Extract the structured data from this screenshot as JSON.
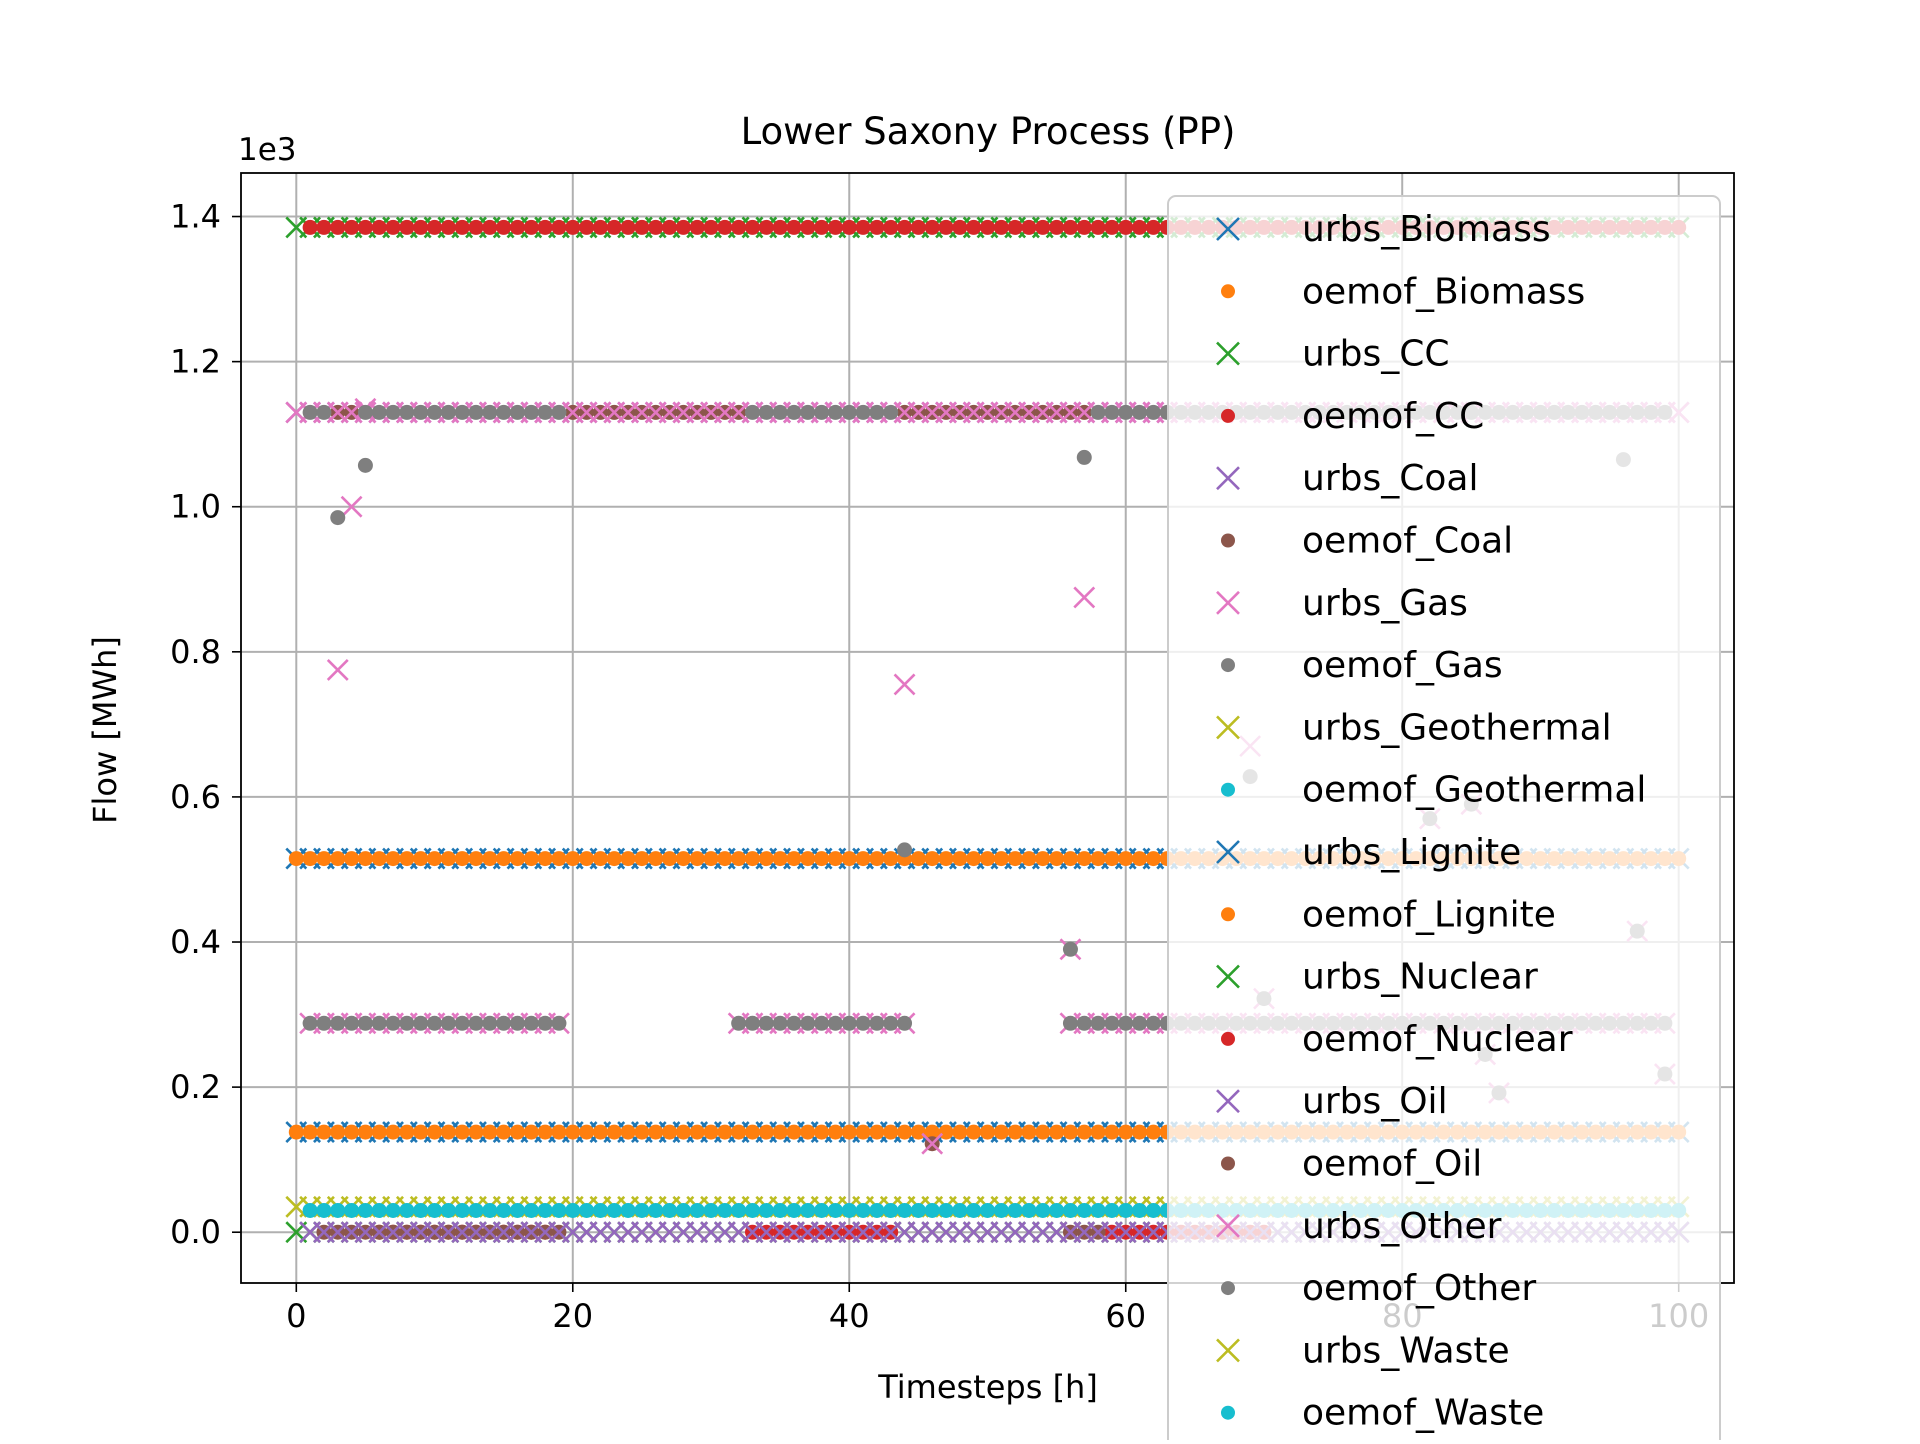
{
  "chart_data": {
    "type": "scatter",
    "title": "Lower Saxony Process (PP)",
    "xlabel": "Timesteps [h]",
    "ylabel": "Flow [MWh]",
    "y_offset_label": "1e3",
    "xlim": [
      -4,
      104
    ],
    "ylim": [
      -0.07,
      1.46
    ],
    "xticks": [
      0,
      20,
      40,
      60,
      80,
      100
    ],
    "xtick_labels": [
      "0",
      "20",
      "40",
      "60",
      "80",
      "100"
    ],
    "yticks": [
      0.0,
      0.2,
      0.4,
      0.6,
      0.8,
      1.0,
      1.2,
      1.4
    ],
    "ytick_labels": [
      "0.0",
      "0.2",
      "0.4",
      "0.6",
      "0.8",
      "1.0",
      "1.2",
      "1.4"
    ],
    "grid": true,
    "legend_position": "right overlapping plot",
    "series": [
      {
        "name": "urbs_Biomass",
        "marker": "x",
        "color": "#1f77b4",
        "segments": [
          {
            "x0": 0,
            "x1": 100,
            "y": 0.515
          },
          {
            "x0": 0,
            "x1": 100,
            "y": 0.138
          }
        ]
      },
      {
        "name": "oemof_Biomass",
        "marker": "dot",
        "color": "#ff7f0e",
        "segments": [
          {
            "x0": 0,
            "x1": 100,
            "y": 0.515
          },
          {
            "x0": 0,
            "x1": 100,
            "y": 0.138
          }
        ]
      },
      {
        "name": "urbs_CC",
        "marker": "x",
        "color": "#2ca02c",
        "segments": [
          {
            "x0": 0,
            "x1": 100,
            "y": 1.385
          },
          {
            "x0": 0,
            "x1": 100,
            "y": 0.0
          }
        ]
      },
      {
        "name": "oemof_CC",
        "marker": "dot",
        "color": "#d62728",
        "segments": [
          {
            "x0": 1,
            "x1": 100,
            "y": 1.385
          },
          {
            "x0": 6,
            "x1": 18,
            "y": 0.0
          },
          {
            "x0": 33,
            "x1": 43,
            "y": 0.0
          },
          {
            "x0": 59,
            "x1": 70,
            "y": 0.0
          }
        ]
      },
      {
        "name": "urbs_Coal",
        "marker": "x",
        "color": "#9467bd",
        "segments": [
          {
            "x0": 0,
            "x1": 100,
            "y": 1.13
          }
        ]
      },
      {
        "name": "oemof_Coal",
        "marker": "dot",
        "color": "#8c564b",
        "segments": [
          {
            "x0": 3,
            "x1": 4,
            "y": 1.13
          },
          {
            "x0": 20,
            "x1": 32,
            "y": 1.13
          },
          {
            "x0": 44,
            "x1": 57,
            "y": 1.13
          },
          {
            "x0": 2,
            "x1": 19,
            "y": 0.0
          },
          {
            "x0": 56,
            "x1": 58,
            "y": 0.0
          }
        ]
      },
      {
        "name": "urbs_Gas",
        "marker": "x",
        "color": "#e377c2",
        "points": [
          [
            3,
            0.775
          ],
          [
            4,
            1.0
          ],
          [
            5,
            1.135
          ],
          [
            44,
            0.755
          ],
          [
            57,
            0.875
          ],
          [
            69,
            0.67
          ]
        ]
      },
      {
        "name": "oemof_Gas",
        "marker": "dot",
        "color": "#7f7f7f",
        "points": [
          [
            3,
            0.985
          ],
          [
            5,
            1.057
          ],
          [
            57,
            1.068
          ],
          [
            44,
            0.527
          ],
          [
            69,
            0.628
          ],
          [
            96,
            1.065
          ]
        ]
      },
      {
        "name": "urbs_Geothermal",
        "marker": "x",
        "color": "#bcbd22",
        "segments": [
          {
            "x0": 0,
            "x1": 100,
            "y": 0.035
          }
        ]
      },
      {
        "name": "oemof_Geothermal",
        "marker": "dot",
        "color": "#17becf",
        "segments": [
          {
            "x0": 1,
            "x1": 100,
            "y": 0.03
          }
        ]
      },
      {
        "name": "urbs_Lignite",
        "marker": "x",
        "color": "#1f77b4",
        "segments": []
      },
      {
        "name": "oemof_Lignite",
        "marker": "dot",
        "color": "#ff7f0e",
        "segments": []
      },
      {
        "name": "urbs_Nuclear",
        "marker": "x",
        "color": "#2ca02c",
        "segments": []
      },
      {
        "name": "oemof_Nuclear",
        "marker": "dot",
        "color": "#d62728",
        "segments": []
      },
      {
        "name": "urbs_Oil",
        "marker": "x",
        "color": "#9467bd",
        "segments": [
          {
            "x0": 1,
            "x1": 100,
            "y": 0.0
          }
        ]
      },
      {
        "name": "oemof_Oil",
        "marker": "dot",
        "color": "#8c564b",
        "points": [
          [
            46,
            0.122
          ]
        ]
      },
      {
        "name": "urbs_Other",
        "marker": "x",
        "color": "#e377c2",
        "segments": [
          {
            "x0": 1,
            "x1": 19,
            "y": 0.288
          },
          {
            "x0": 32,
            "x1": 44,
            "y": 0.288
          },
          {
            "x0": 56,
            "x1": 99,
            "y": 0.288
          },
          {
            "x0": 0,
            "x1": 100,
            "y": 1.13
          }
        ],
        "points": [
          [
            46,
            0.122
          ],
          [
            56,
            0.39
          ],
          [
            70,
            0.322
          ],
          [
            82,
            0.57
          ],
          [
            85,
            0.59
          ],
          [
            86,
            0.245
          ],
          [
            87,
            0.192
          ],
          [
            97,
            0.415
          ],
          [
            99,
            0.218
          ]
        ]
      },
      {
        "name": "oemof_Other",
        "marker": "dot",
        "color": "#7f7f7f",
        "segments": [
          {
            "x0": 1,
            "x1": 19,
            "y": 0.288
          },
          {
            "x0": 32,
            "x1": 44,
            "y": 0.288
          },
          {
            "x0": 56,
            "x1": 99,
            "y": 0.288
          },
          {
            "x0": 1,
            "x1": 2,
            "y": 1.13
          },
          {
            "x0": 5,
            "x1": 19,
            "y": 1.13
          },
          {
            "x0": 33,
            "x1": 43,
            "y": 1.13
          },
          {
            "x0": 58,
            "x1": 99,
            "y": 1.13
          }
        ],
        "points": [
          [
            56,
            0.39
          ],
          [
            70,
            0.322
          ],
          [
            82,
            0.57
          ],
          [
            85,
            0.59
          ],
          [
            86,
            0.245
          ],
          [
            87,
            0.192
          ],
          [
            97,
            0.415
          ],
          [
            99,
            0.218
          ]
        ]
      },
      {
        "name": "urbs_Waste",
        "marker": "x",
        "color": "#bcbd22",
        "segments": []
      },
      {
        "name": "oemof_Waste",
        "marker": "dot",
        "color": "#17becf",
        "segments": []
      }
    ]
  }
}
